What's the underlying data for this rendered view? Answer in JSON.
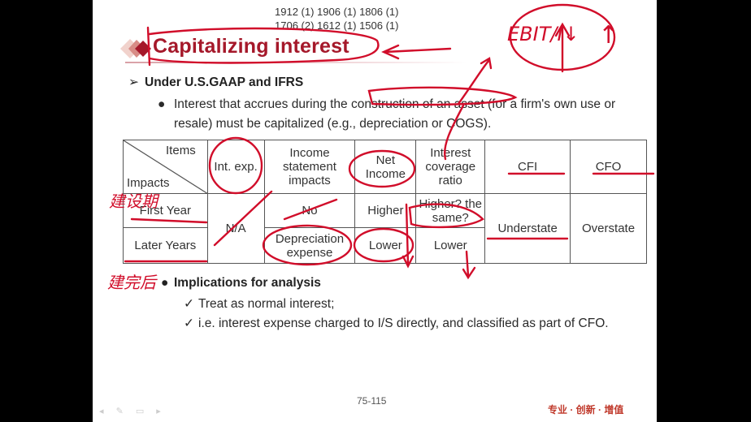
{
  "header_codes": [
    "1912 (1) 1906 (1) 1806 (1)",
    "1706 (2) 1612 (1) 1506 (1)"
  ],
  "title": "Capitalizing interest",
  "section": "Under U.S.GAAP and IFRS",
  "bullet1": "Interest that accrues during the construction of an asset (for a firm's own use or resale) must be capitalized (e.g., depreciation or COGS).",
  "table": {
    "corner_items": "Items",
    "corner_impacts": "Impacts",
    "headers": [
      "Int. exp.",
      "Income statement impacts",
      "Net Income",
      "Interest coverage ratio",
      "CFI",
      "CFO"
    ],
    "rows": [
      {
        "label": "First Year",
        "int_exp": "N/A",
        "income_statement": "No",
        "net_income": "Higher",
        "coverage": "Higher? the same?",
        "cfi": "Understate",
        "cfo": "Overstate"
      },
      {
        "label": "Later Years",
        "income_statement": "Depreciation expense",
        "net_income": "Lower",
        "coverage": "Lower"
      }
    ]
  },
  "implications": {
    "heading": "Implications for analysis",
    "items": [
      "Treat as normal interest;",
      "i.e. interest expense charged to I/S directly, and classified as part of CFO."
    ]
  },
  "page_number": "75-115",
  "brand": "专业 · 创新 · 增值",
  "annotations": {
    "ebit": "EBIT/I↓",
    "up_arrow": "↑",
    "construction_during": "建设期",
    "construction_after": "建完后"
  },
  "colors": {
    "title": "#a5182a",
    "ink": "#d10d2a"
  }
}
